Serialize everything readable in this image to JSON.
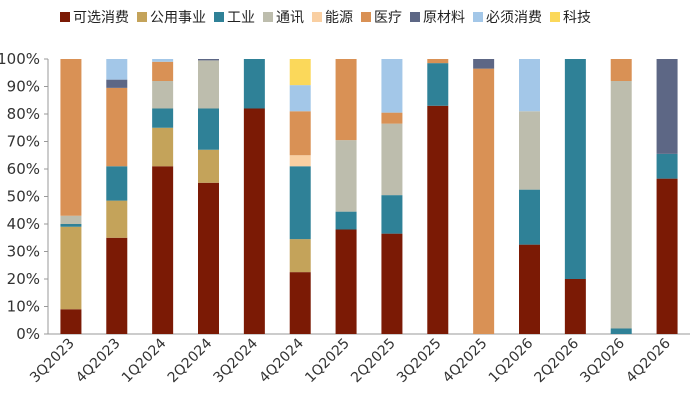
{
  "chart_data": {
    "type": "bar",
    "stacked": true,
    "categories": [
      "3Q2023",
      "4Q2023",
      "1Q2024",
      "2Q2024",
      "3Q2024",
      "4Q2024",
      "1Q2025",
      "2Q2025",
      "3Q2025",
      "4Q2025",
      "1Q2026",
      "2Q2026",
      "3Q2026",
      "4Q2026"
    ],
    "series": [
      {
        "name": "可选消费",
        "color": "#7b1a05",
        "values": [
          9,
          35,
          61,
          55,
          82,
          22.5,
          38,
          36.5,
          83,
          0,
          32.5,
          20,
          0,
          56.5
        ]
      },
      {
        "name": "公用事业",
        "color": "#c4a35a",
        "values": [
          30,
          13.5,
          14,
          12,
          0,
          12,
          0,
          0,
          0,
          0,
          0,
          0,
          0,
          0
        ]
      },
      {
        "name": "工业",
        "color": "#2f8197",
        "values": [
          1,
          12.5,
          7,
          15,
          18,
          26.5,
          6.5,
          14,
          15.5,
          0,
          20,
          80,
          2,
          9
        ]
      },
      {
        "name": "通讯",
        "color": "#bdbdad",
        "values": [
          3,
          0,
          10,
          17.5,
          0,
          0,
          26,
          26,
          0,
          0,
          28.5,
          0,
          90,
          0
        ]
      },
      {
        "name": "能源",
        "color": "#f9cfa2",
        "values": [
          0,
          0,
          0,
          0,
          0,
          4,
          0,
          0,
          0,
          0,
          0,
          0,
          0,
          0
        ]
      },
      {
        "name": "医疗",
        "color": "#d99155",
        "values": [
          57,
          28.5,
          7,
          0,
          0,
          16,
          29.5,
          4,
          1.5,
          96.5,
          0,
          0,
          8,
          0
        ]
      },
      {
        "name": "原材料",
        "color": "#5d6785",
        "values": [
          0,
          3,
          0,
          0.5,
          0,
          0,
          0,
          0,
          0,
          3.5,
          0,
          0,
          0,
          34.5
        ]
      },
      {
        "name": "必须消费",
        "color": "#a3c7e8",
        "values": [
          0,
          7.5,
          1,
          0,
          0,
          9.5,
          0,
          19.5,
          0,
          0,
          19,
          0,
          0,
          0
        ]
      },
      {
        "name": "科技",
        "color": "#fbd85a",
        "values": [
          0,
          0,
          0,
          0,
          0,
          9.5,
          0,
          0,
          0,
          0,
          0,
          0,
          0,
          0
        ]
      }
    ],
    "ylim": [
      0,
      100
    ],
    "yticks": [
      0,
      10,
      20,
      30,
      40,
      50,
      60,
      70,
      80,
      90,
      100
    ],
    "ytick_suffix": "%",
    "grid": false,
    "legend": "top"
  }
}
